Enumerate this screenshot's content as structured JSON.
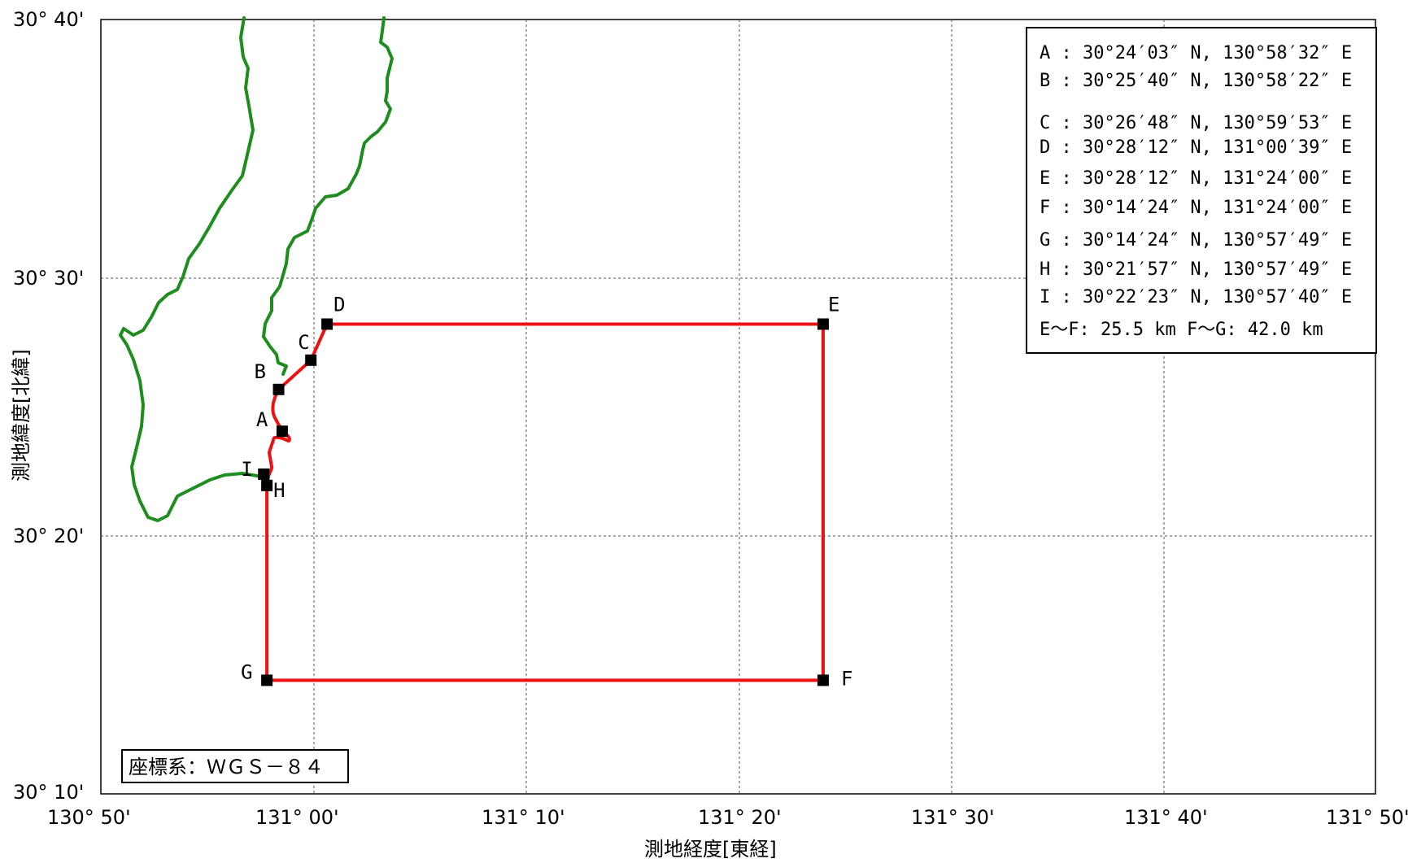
{
  "colors": {
    "coastline": "#1e8c1e",
    "boundary": "#ee1111",
    "marker": "#000000",
    "grid": "#555555"
  },
  "axes": {
    "x_title": "測地経度[東経]",
    "y_title": "測地緯度[北緯]",
    "x_ticks": [
      "130° 50'",
      "131° 00'",
      "131° 10'",
      "131° 20'",
      "131° 30'",
      "131° 40'",
      "131° 50'"
    ],
    "y_ticks": [
      "30° 40'",
      "30° 30'",
      "30° 20'",
      "30° 10'"
    ]
  },
  "points": [
    {
      "id": "A",
      "label": "A",
      "lon": 130.9756,
      "lat": 30.4008
    },
    {
      "id": "B",
      "label": "B",
      "lon": 130.9728,
      "lat": 30.4278
    },
    {
      "id": "C",
      "label": "C",
      "lon": 130.9981,
      "lat": 30.4467
    },
    {
      "id": "D",
      "label": "D",
      "lon": 131.0108,
      "lat": 30.47
    },
    {
      "id": "E",
      "label": "E",
      "lon": 131.4,
      "lat": 30.47
    },
    {
      "id": "F",
      "label": "F",
      "lon": 131.4,
      "lat": 30.24
    },
    {
      "id": "G",
      "label": "G",
      "lon": 130.9636,
      "lat": 30.24
    },
    {
      "id": "H",
      "label": "H",
      "lon": 130.9636,
      "lat": 30.3658
    },
    {
      "id": "I",
      "label": "I",
      "lon": 130.9611,
      "lat": 30.3731
    }
  ],
  "legend": {
    "rows": [
      "A : 30°24′03″ N, 130°58′32″ E",
      "B : 30°25′40″ N, 130°58′22″ E",
      "C : 30°26′48″ N, 130°59′53″ E",
      "D : 30°28′12″ N, 131°00′39″ E",
      "E : 30°28′12″ N, 131°24′00″ E",
      "F : 30°14′24″ N, 131°24′00″ E",
      "G : 30°14′24″ N, 130°57′49″ E",
      "H : 30°21′57″ N, 130°57′49″ E",
      "I : 30°22′23″ N, 130°57′40″ E"
    ],
    "distances": "E～F: 25.5 km  F～G: 42.0 km"
  },
  "crs_label": "座標系：ＷＧＳ－８４"
}
